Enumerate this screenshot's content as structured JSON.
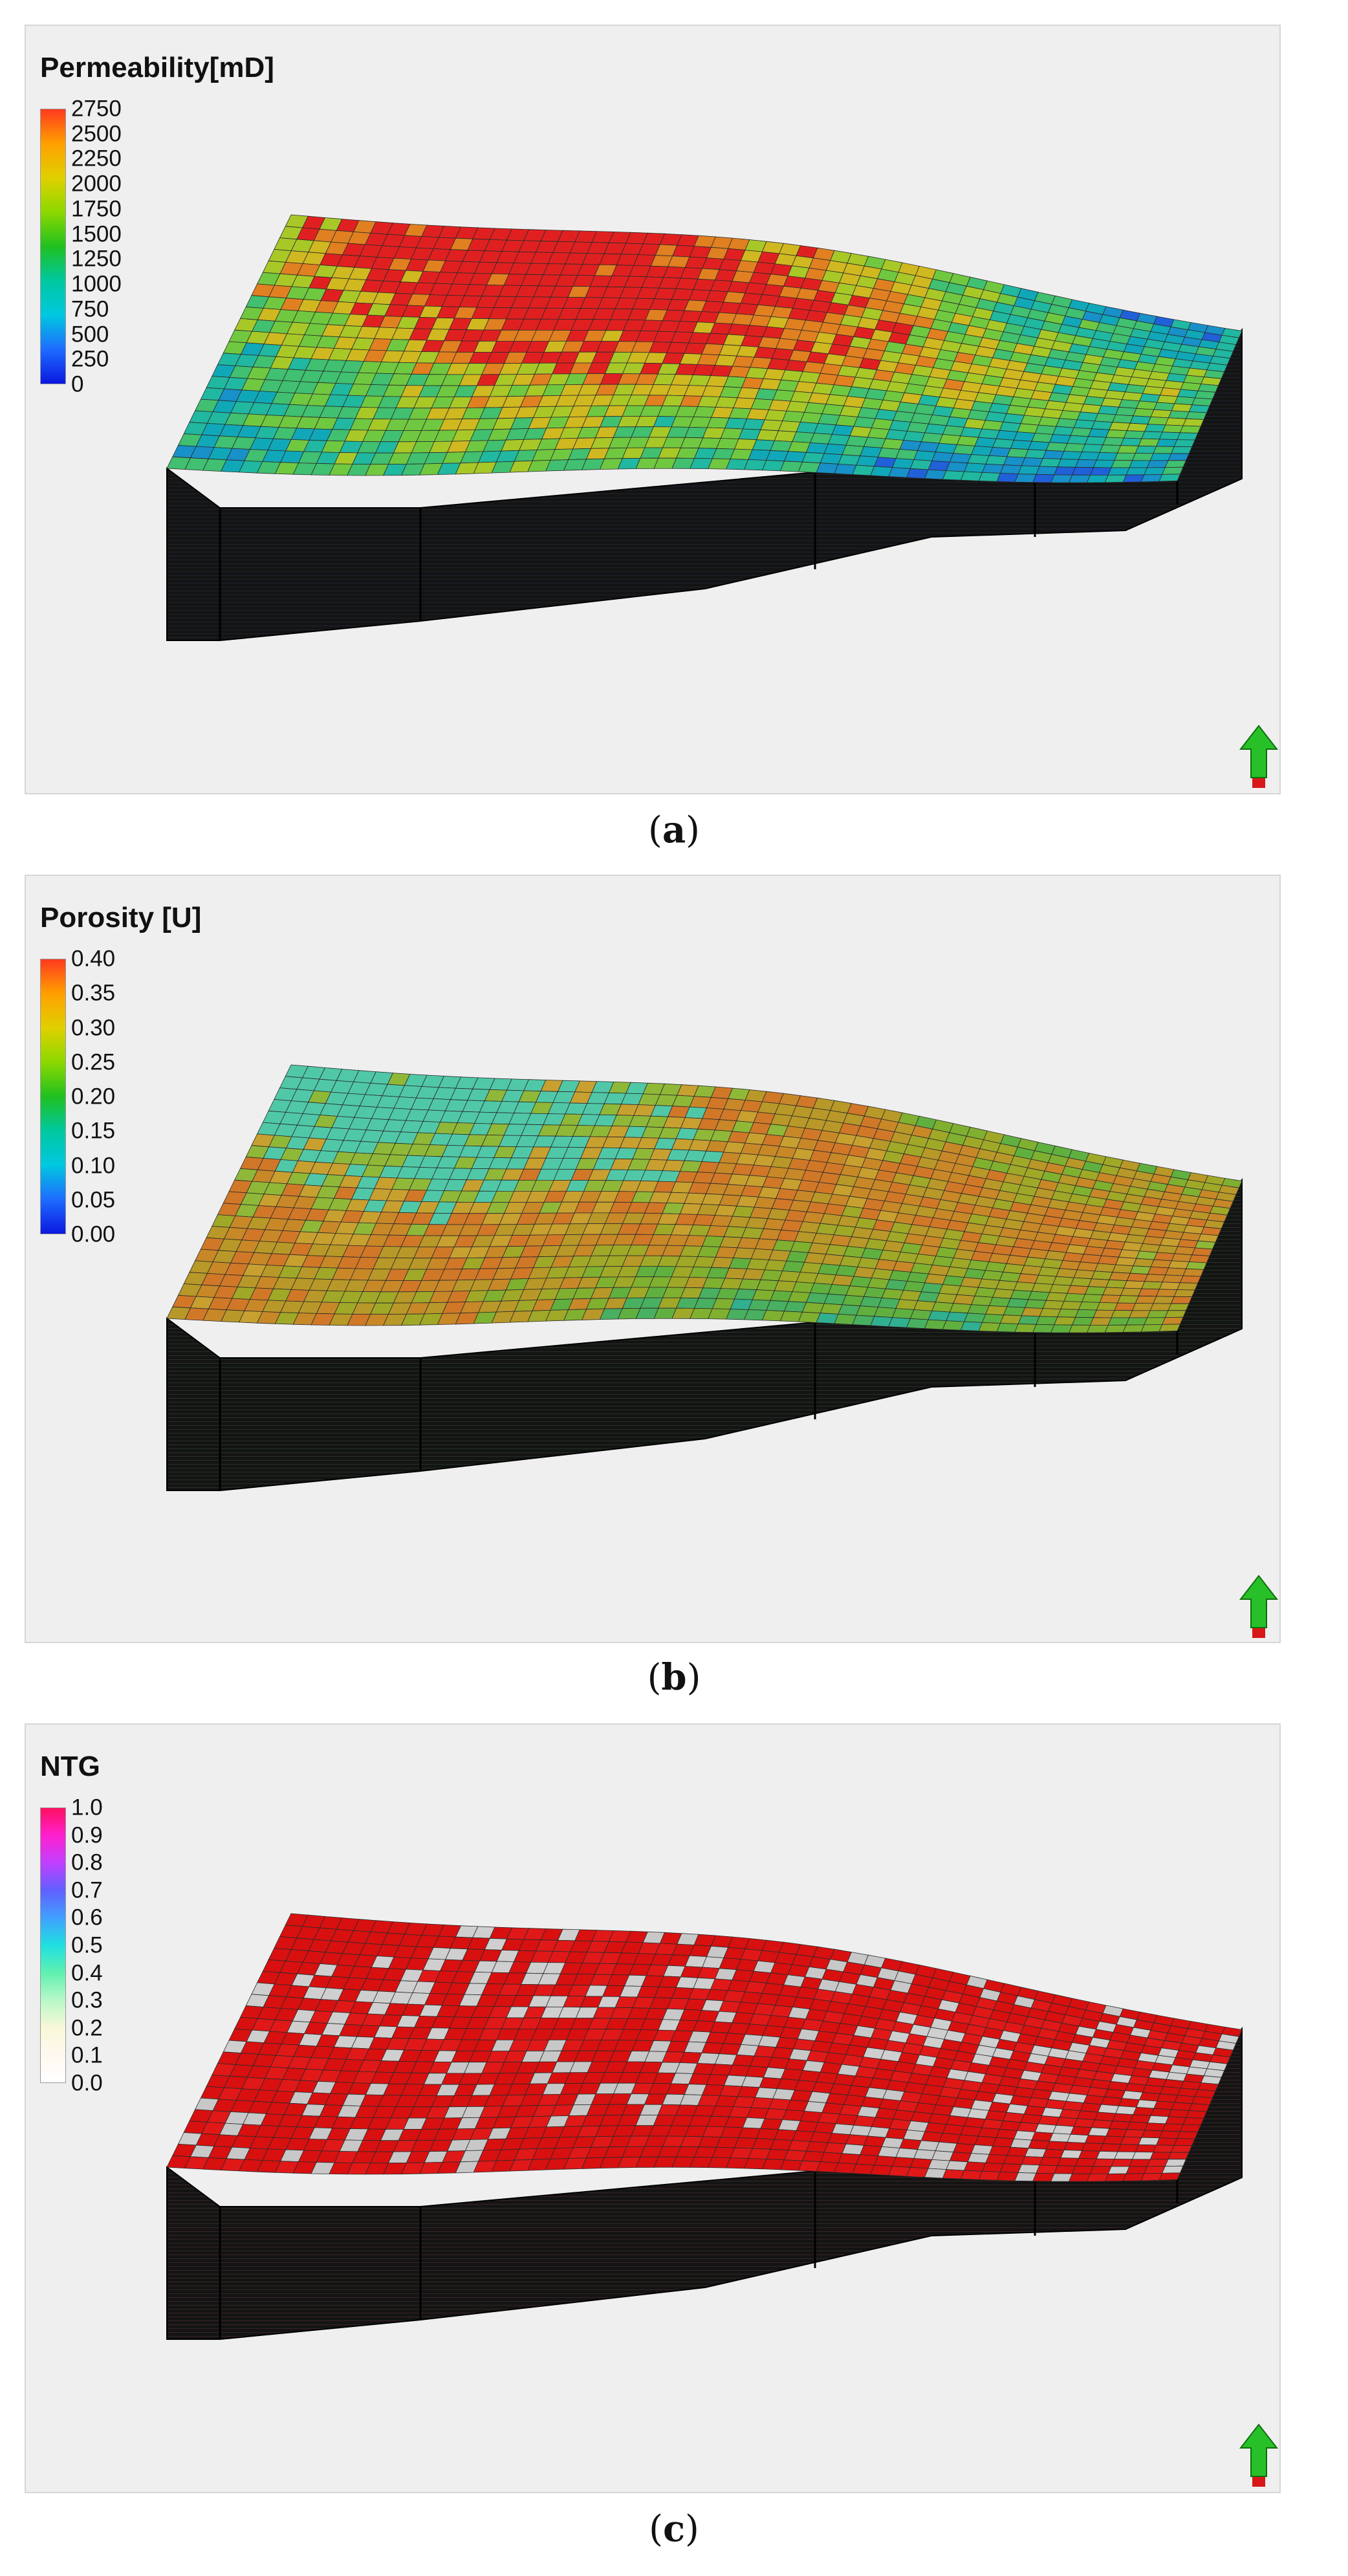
{
  "panels": [
    {
      "id": "a",
      "caption_letter": "a",
      "legend_title": "Permeability[mD]",
      "colorbar_ticks": [
        "2750",
        "2500",
        "2250",
        "2000",
        "1750",
        "1500",
        "1250",
        "1000",
        "750",
        "500",
        "250",
        "0"
      ],
      "colorbar_colors": [
        "#ff3a1e",
        "#ffa000",
        "#e0d000",
        "#8cd800",
        "#20c020",
        "#00c8a0",
        "#00c8e0",
        "#1e6cff",
        "#0a18e0"
      ],
      "palette": [
        "#1020c8",
        "#1838d0",
        "#2060d8",
        "#1890c8",
        "#10a8b8",
        "#20b8a0",
        "#40c070",
        "#70c840",
        "#a8c828",
        "#d0b820",
        "#e08020",
        "#e02020"
      ],
      "icon": "north-arrow-icon"
    },
    {
      "id": "b",
      "caption_letter": "b",
      "legend_title": "Porosity [U]",
      "colorbar_ticks": [
        "0.40",
        "0.35",
        "0.30",
        "0.25",
        "0.20",
        "0.15",
        "0.10",
        "0.05",
        "0.00"
      ],
      "colorbar_colors": [
        "#ff3a1e",
        "#ffa000",
        "#e0d000",
        "#8cd800",
        "#20c020",
        "#00c8a0",
        "#00c8e0",
        "#1e6cff",
        "#0a18e0"
      ],
      "palette": [
        "#18a8b0",
        "#30b090",
        "#48b060",
        "#60b040",
        "#80b030",
        "#a0a828",
        "#b89828",
        "#c88828",
        "#d07828",
        "#c8a030",
        "#90b838",
        "#50c8a8"
      ],
      "icon": "north-arrow-icon"
    },
    {
      "id": "c",
      "caption_letter": "c",
      "legend_title": "NTG",
      "colorbar_ticks": [
        "1.0",
        "0.9",
        "0.8",
        "0.7",
        "0.6",
        "0.5",
        "0.4",
        "0.3",
        "0.2",
        "0.1",
        "0.0"
      ],
      "colorbar_colors": [
        "#ff1060",
        "#ff20d0",
        "#c040ff",
        "#6060ff",
        "#40a0ff",
        "#20e0e0",
        "#60f0b0",
        "#b8f8c8",
        "#f8f8d8",
        "#fff8f0",
        "#ffffff"
      ],
      "palette": [
        "#d81010",
        "#d81010",
        "#d81010",
        "#e01818",
        "#d81010",
        "#c8c8c8",
        "#d81010",
        "#d81010",
        "#e01818",
        "#cfcfcf",
        "#d81010",
        "#d81010"
      ],
      "icon": "north-arrow-icon"
    }
  ]
}
